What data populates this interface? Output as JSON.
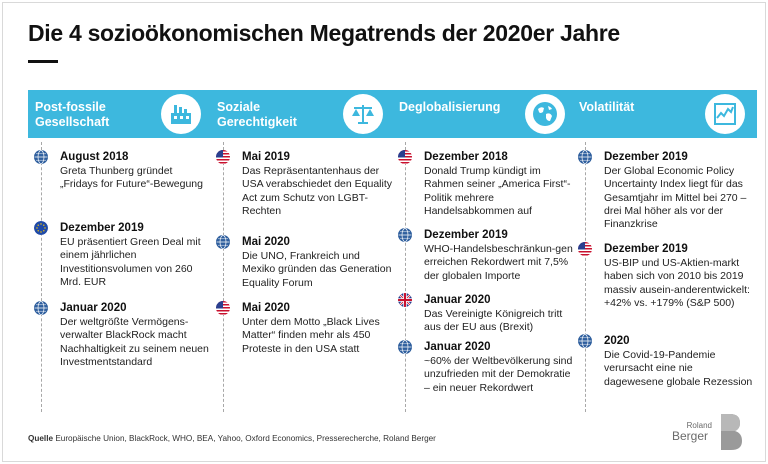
{
  "title": "Die 4 sozioökonomischen Megatrends der 2020er Jahre",
  "colors": {
    "accent": "#3db8de",
    "text": "#1a1a1a"
  },
  "columns": [
    {
      "label": "Post-fossile Gesellschaft",
      "icon": "factory-icon",
      "entries": [
        {
          "flag": "globe-icon",
          "date": "August 2018",
          "text": "Greta Thunberg gründet „Fridays for Future“-Bewegung"
        },
        {
          "flag": "eu-flag-icon",
          "date": "Dezember 2019",
          "text": "EU präsentiert Green Deal mit einem jährlichen Investitionsvolumen von 260 Mrd. EUR"
        },
        {
          "flag": "globe-icon",
          "date": "Januar 2020",
          "text": "Der weltgrößte Vermögens-verwalter BlackRock macht Nachhaltigkeit zu seinem neuen Investmentstandard"
        }
      ]
    },
    {
      "label": "Soziale Gerechtigkeit",
      "icon": "scales-icon",
      "entries": [
        {
          "flag": "us-flag-icon",
          "date": "Mai 2019",
          "text": "Das Repräsentantenhaus der USA verabschiedet den Equality Act zum Schutz von LGBT-Rechten"
        },
        {
          "flag": "globe-icon",
          "date": "Mai 2020",
          "text": "Die UNO, Frankreich und Mexiko gründen das Generation Equality Forum"
        },
        {
          "flag": "us-flag-icon",
          "date": "Mai 2020",
          "text": "Unter dem Motto „Black Lives Matter“ finden mehr als 450 Proteste in den USA statt"
        }
      ]
    },
    {
      "label": "Deglobalisierung",
      "icon": "globe-icon",
      "entries": [
        {
          "flag": "us-flag-icon",
          "date": "Dezember 2018",
          "text": "Donald Trump kündigt im Rahmen seiner „America First“-Politik mehrere Handelsabkommen auf"
        },
        {
          "flag": "globe-icon",
          "date": "Dezember 2019",
          "text": "WHO-Handelsbeschränkun-gen erreichen Rekordwert mit 7,5% der globalen Importe"
        },
        {
          "flag": "uk-flag-icon",
          "date": "Januar 2020",
          "text": "Das Vereinigte Königreich tritt aus der EU aus (Brexit)"
        },
        {
          "flag": "globe-icon",
          "date": "Januar 2020",
          "text": "~60% der Weltbevölkerung sind unzufrieden mit der Demokratie – ein neuer Rekordwert"
        }
      ]
    },
    {
      "label": "Volatilität",
      "icon": "chart-icon",
      "entries": [
        {
          "flag": "globe-icon",
          "date": "Dezember 2019",
          "text": "Der Global Economic Policy Uncertainty Index liegt für das Gesamtjahr im Mittel bei 270 – drei Mal höher als vor der Finanzkrise"
        },
        {
          "flag": "us-flag-icon",
          "date": "Dezember 2019",
          "text": "US-BIP und US-Aktien-markt haben sich von 2010 bis 2019 massiv ausein-anderentwickelt: +42% vs. +179% (S&P 500)"
        },
        {
          "flag": "globe-icon",
          "date": "2020",
          "text": "Die Covid-19-Pandemie verursacht eine nie dagewesene globale Rezession"
        }
      ]
    }
  ],
  "source": {
    "label": "Quelle",
    "text": "Europäische Union, BlackRock, WHO, BEA, Yahoo, Oxford Economics, Presserecherche, Roland Berger"
  },
  "logo": {
    "line1": "Roland",
    "line2": "Berger"
  }
}
